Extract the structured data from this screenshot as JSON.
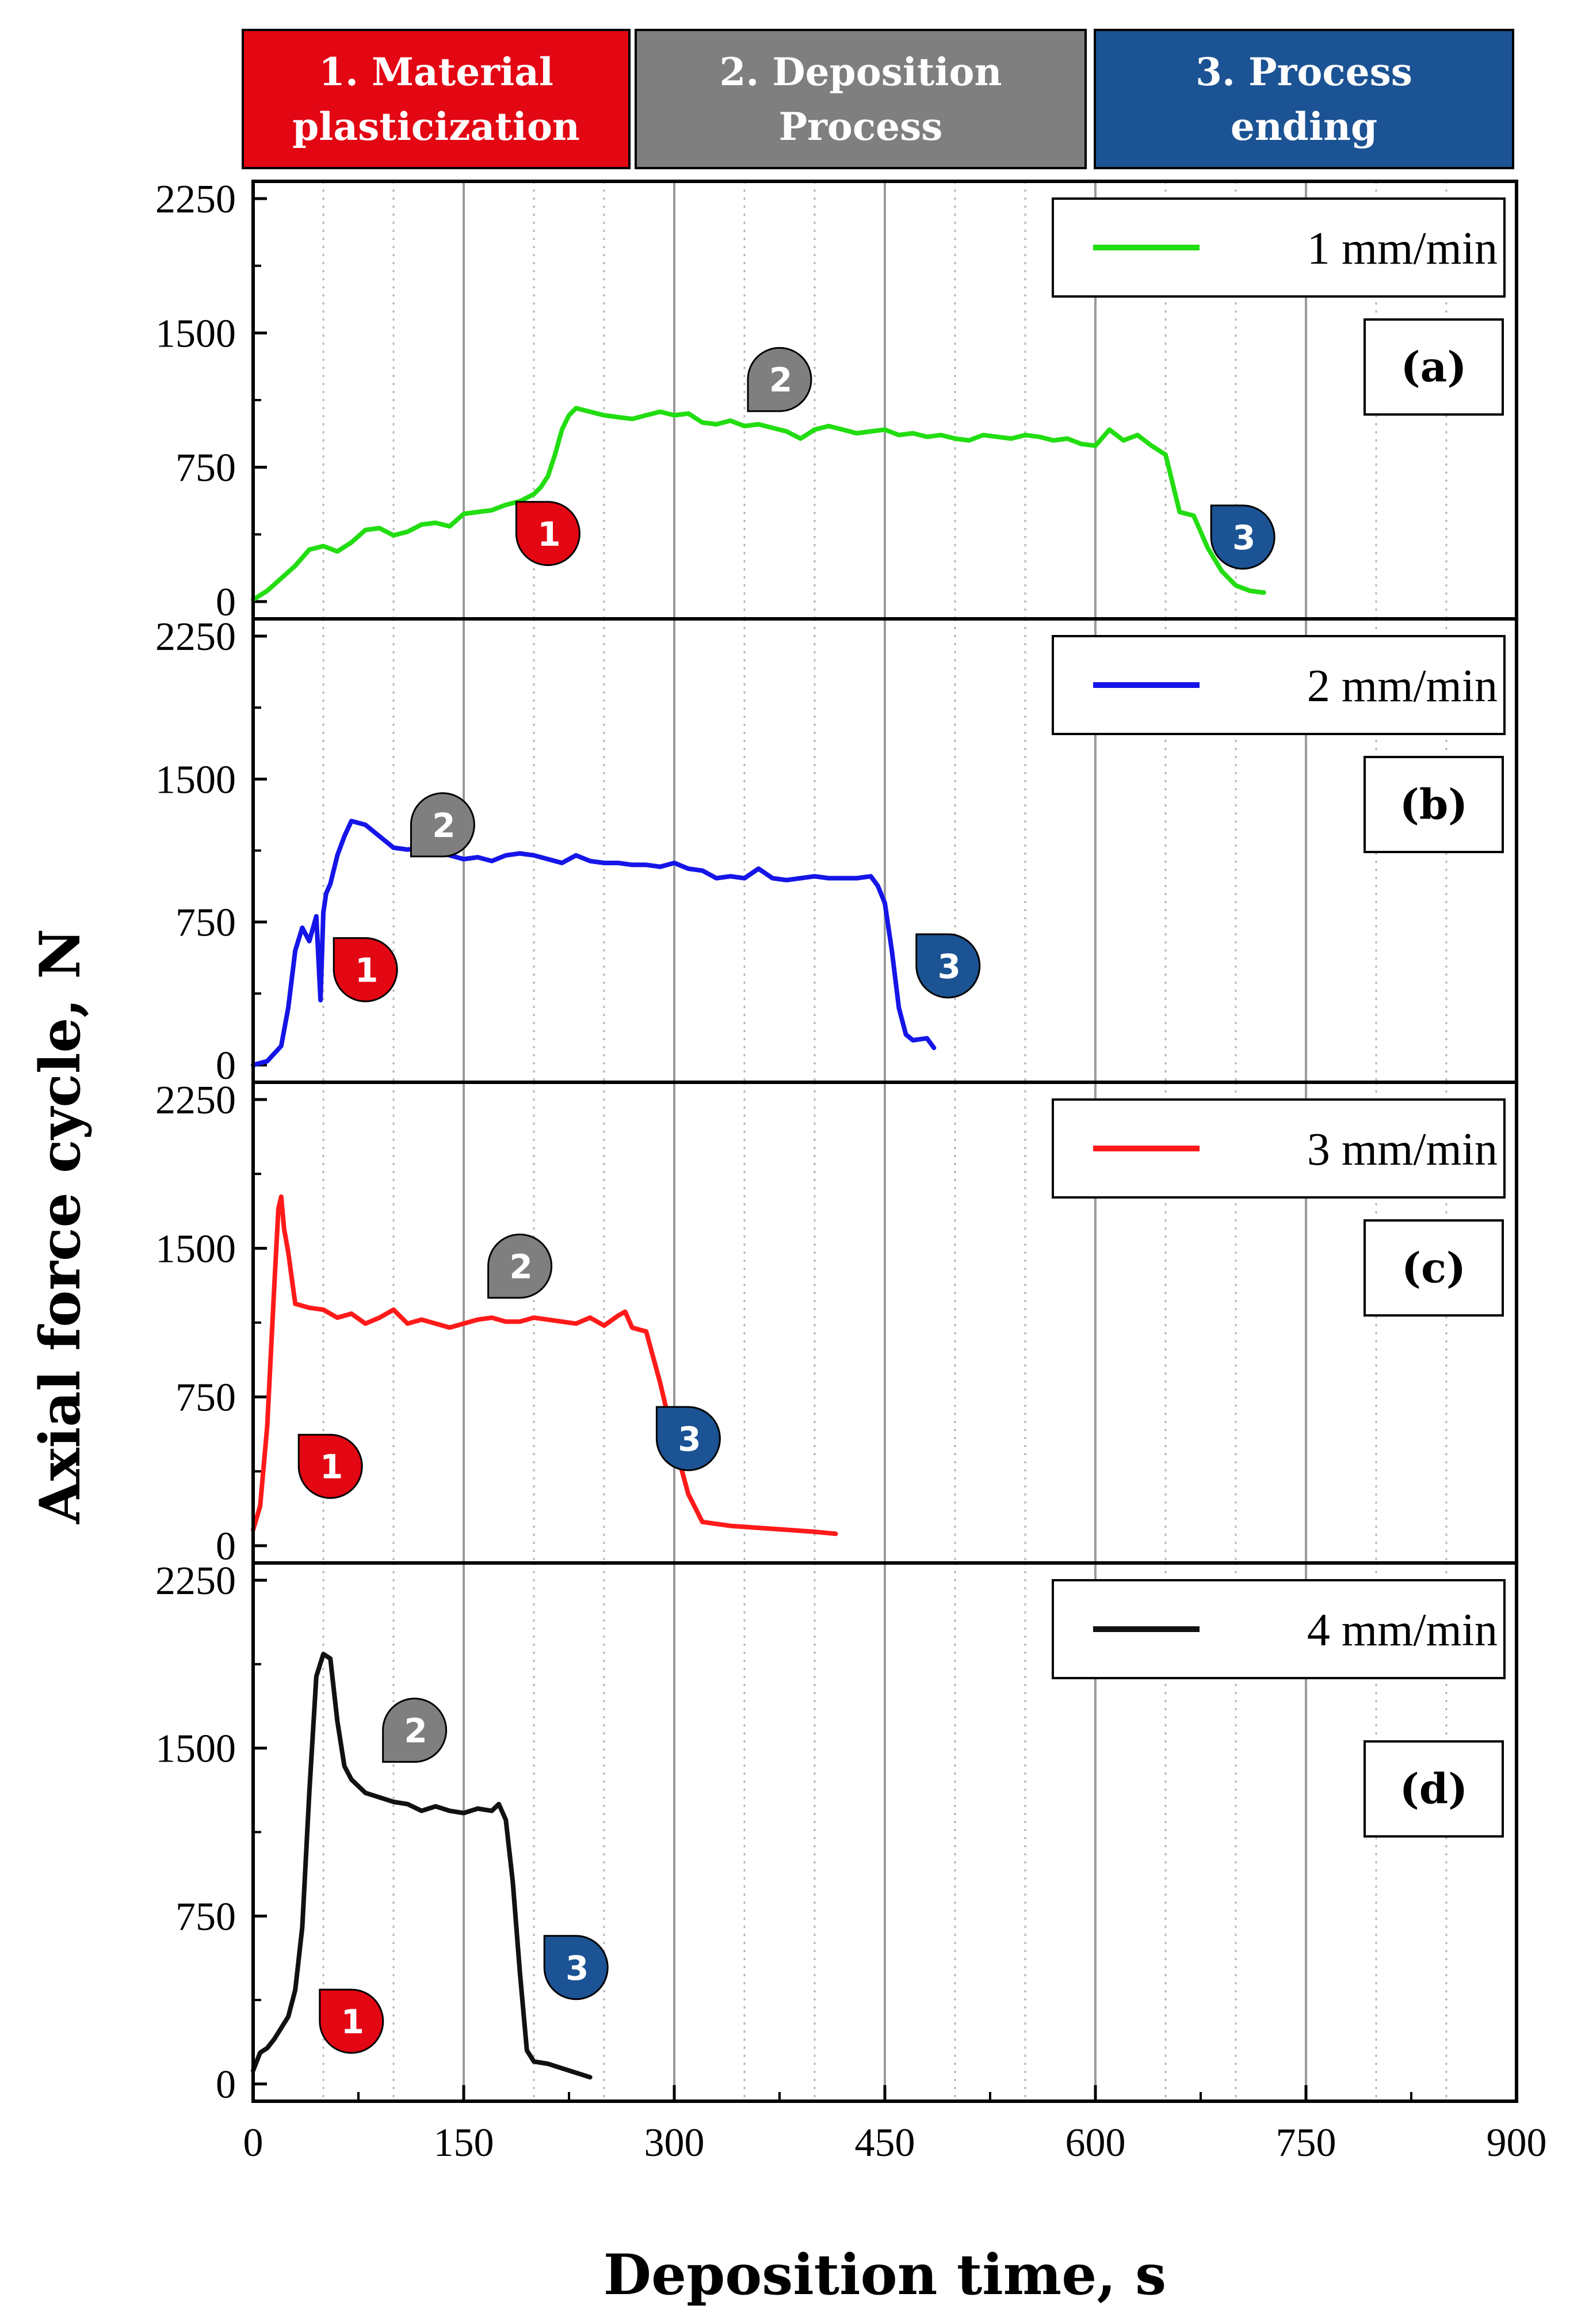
{
  "phases": [
    {
      "lines": [
        "1. Material",
        "plasticization"
      ],
      "color": "#e30613"
    },
    {
      "lines": [
        "2. Deposition",
        "Process"
      ],
      "color": "#7f7f7f"
    },
    {
      "lines": [
        "3. Process",
        "ending"
      ],
      "color": "#1b5394"
    }
  ],
  "chart_data": {
    "type": "line",
    "xlabel": "Deposition time, s",
    "ylabel": "Axial force cycle, N",
    "xlim": [
      0,
      900
    ],
    "ylim": [
      0,
      2250
    ],
    "xticks": [
      0,
      150,
      300,
      450,
      600,
      750,
      900
    ],
    "yticks": [
      0,
      750,
      1500,
      2250
    ],
    "grid": "vertical dotted minor lines every 50 s, solid major lines every 150 s",
    "panels": [
      {
        "panel_label": "(a)",
        "series_name": "1 mm/min",
        "color": "#22dd11",
        "x": [
          0,
          10,
          20,
          30,
          40,
          50,
          60,
          70,
          80,
          90,
          100,
          110,
          120,
          130,
          140,
          150,
          160,
          170,
          180,
          190,
          200,
          205,
          210,
          215,
          220,
          225,
          230,
          240,
          250,
          260,
          270,
          280,
          290,
          300,
          310,
          320,
          330,
          340,
          350,
          360,
          370,
          380,
          390,
          400,
          410,
          420,
          430,
          440,
          450,
          460,
          470,
          480,
          490,
          500,
          510,
          520,
          530,
          540,
          550,
          560,
          570,
          580,
          590,
          600,
          610,
          620,
          630,
          640,
          650,
          660,
          670,
          680,
          690,
          700,
          710,
          720
        ],
        "y": [
          10,
          60,
          130,
          200,
          290,
          310,
          280,
          330,
          400,
          410,
          370,
          390,
          430,
          440,
          420,
          490,
          500,
          510,
          540,
          560,
          600,
          640,
          700,
          820,
          960,
          1040,
          1080,
          1060,
          1040,
          1030,
          1020,
          1040,
          1060,
          1040,
          1050,
          1000,
          990,
          1010,
          980,
          990,
          970,
          950,
          910,
          960,
          980,
          960,
          940,
          950,
          960,
          930,
          940,
          920,
          930,
          910,
          900,
          930,
          920,
          910,
          930,
          920,
          900,
          910,
          880,
          870,
          960,
          900,
          930,
          870,
          820,
          500,
          480,
          300,
          170,
          90,
          60,
          50
        ]
      },
      {
        "panel_label": "(b)",
        "series_name": "2 mm/min",
        "color": "#1515e8",
        "x": [
          0,
          10,
          20,
          25,
          30,
          35,
          40,
          45,
          48,
          50,
          52,
          55,
          60,
          65,
          70,
          80,
          90,
          100,
          110,
          120,
          130,
          140,
          150,
          160,
          170,
          180,
          190,
          200,
          210,
          220,
          230,
          240,
          250,
          260,
          270,
          280,
          290,
          300,
          310,
          320,
          330,
          340,
          350,
          360,
          370,
          380,
          390,
          400,
          410,
          420,
          430,
          440,
          445,
          450,
          455,
          460,
          465,
          470,
          480,
          485
        ],
        "y": [
          0,
          20,
          100,
          300,
          600,
          720,
          650,
          780,
          340,
          800,
          900,
          950,
          1100,
          1200,
          1280,
          1260,
          1200,
          1140,
          1130,
          1140,
          1120,
          1100,
          1080,
          1090,
          1070,
          1100,
          1110,
          1100,
          1080,
          1060,
          1100,
          1070,
          1060,
          1060,
          1050,
          1050,
          1040,
          1060,
          1030,
          1020,
          980,
          990,
          980,
          1030,
          980,
          970,
          980,
          990,
          980,
          980,
          980,
          990,
          940,
          850,
          600,
          300,
          160,
          130,
          140,
          90
        ]
      },
      {
        "panel_label": "(c)",
        "series_name": "3 mm/min",
        "color": "#ff1a1a",
        "x": [
          0,
          5,
          10,
          15,
          18,
          20,
          22,
          25,
          30,
          40,
          50,
          60,
          70,
          80,
          90,
          100,
          110,
          120,
          130,
          140,
          150,
          160,
          170,
          180,
          190,
          200,
          210,
          220,
          230,
          240,
          250,
          260,
          265,
          270,
          275,
          280,
          290,
          300,
          310,
          320,
          340,
          360,
          380,
          400,
          415
        ],
        "y": [
          80,
          200,
          600,
          1300,
          1700,
          1760,
          1600,
          1480,
          1220,
          1200,
          1190,
          1150,
          1170,
          1120,
          1150,
          1190,
          1120,
          1140,
          1120,
          1100,
          1120,
          1140,
          1150,
          1130,
          1130,
          1150,
          1140,
          1130,
          1120,
          1150,
          1110,
          1160,
          1180,
          1100,
          1090,
          1080,
          820,
          520,
          260,
          120,
          100,
          90,
          80,
          70,
          60
        ]
      },
      {
        "panel_label": "(d)",
        "series_name": "4 mm/min",
        "color": "#111111",
        "x": [
          0,
          5,
          10,
          15,
          20,
          25,
          30,
          35,
          40,
          45,
          50,
          55,
          60,
          65,
          70,
          80,
          90,
          100,
          110,
          120,
          130,
          140,
          150,
          160,
          170,
          175,
          180,
          185,
          190,
          195,
          200,
          210,
          220,
          230,
          240
        ],
        "y": [
          60,
          140,
          160,
          200,
          250,
          300,
          420,
          700,
          1300,
          1820,
          1920,
          1900,
          1620,
          1420,
          1360,
          1300,
          1280,
          1260,
          1250,
          1220,
          1240,
          1220,
          1210,
          1230,
          1220,
          1250,
          1180,
          900,
          500,
          150,
          100,
          90,
          70,
          50,
          30
        ]
      }
    ],
    "markers": [
      [
        {
          "label": "1",
          "x": 210,
          "y": 380,
          "color": "#e30613"
        },
        {
          "label": "2",
          "x": 375,
          "y": 1240,
          "color": "#7f7f7f"
        },
        {
          "label": "3",
          "x": 705,
          "y": 360,
          "color": "#1b5394"
        }
      ],
      [
        {
          "label": "1",
          "x": 80,
          "y": 500,
          "color": "#e30613"
        },
        {
          "label": "2",
          "x": 135,
          "y": 1260,
          "color": "#7f7f7f"
        },
        {
          "label": "3",
          "x": 495,
          "y": 520,
          "color": "#1b5394"
        }
      ],
      [
        {
          "label": "1",
          "x": 55,
          "y": 400,
          "color": "#e30613"
        },
        {
          "label": "2",
          "x": 190,
          "y": 1410,
          "color": "#7f7f7f"
        },
        {
          "label": "3",
          "x": 310,
          "y": 540,
          "color": "#1b5394"
        }
      ],
      [
        {
          "label": "1",
          "x": 70,
          "y": 280,
          "color": "#e30613"
        },
        {
          "label": "2",
          "x": 115,
          "y": 1580,
          "color": "#7f7f7f"
        },
        {
          "label": "3",
          "x": 230,
          "y": 520,
          "color": "#1b5394"
        }
      ]
    ]
  }
}
